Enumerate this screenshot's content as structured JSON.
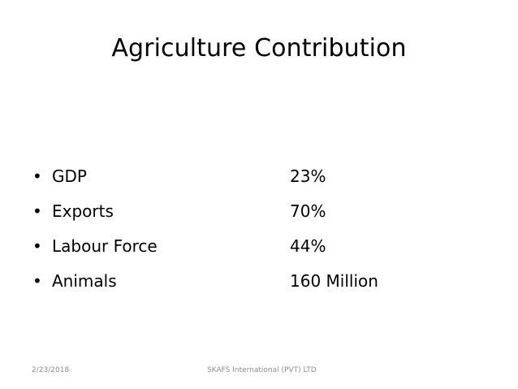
{
  "slide": {
    "title": "Agriculture Contribution",
    "bullet_symbol": "•",
    "items": [
      {
        "label": "GDP",
        "value": "23%"
      },
      {
        "label": "Exports",
        "value": "70%"
      },
      {
        "label": "Labour Force",
        "value": "44%"
      },
      {
        "label": "Animals",
        "value": "160 Million"
      }
    ],
    "footer": {
      "date": "2/23/2018",
      "company": "SKAFS International (PVT) LTD"
    }
  }
}
